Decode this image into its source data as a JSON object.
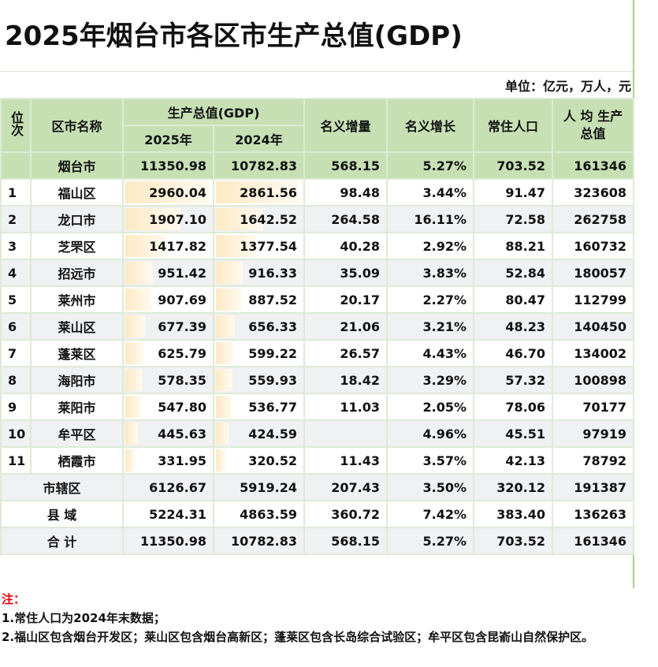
{
  "title": "2025年烟台市各区市生产总值(GDP)",
  "unit": "单位：亿元，万人，元",
  "headers": {
    "rank": "位次",
    "name": "区市名称",
    "gdp": "生产总值(GDP)",
    "y2025": "2025年",
    "y2024": "2024年",
    "inc": "名义增量",
    "growth": "名义增长",
    "pop": "常住人口",
    "per": "人 均 生产总值"
  },
  "total_top": {
    "name": "烟台市",
    "y2025": "11350.98",
    "y2024": "10782.83",
    "inc": "568.15",
    "growth": "5.27%",
    "pop": "703.52",
    "per": "161346"
  },
  "rows": [
    {
      "rank": "1",
      "name": "福山区",
      "y2025": "2960.04",
      "y2024": "2861.56",
      "inc": "98.48",
      "growth": "3.44%",
      "pop": "91.47",
      "per": "323608"
    },
    {
      "rank": "2",
      "name": "龙口市",
      "y2025": "1907.10",
      "y2024": "1642.52",
      "inc": "264.58",
      "growth": "16.11%",
      "pop": "72.58",
      "per": "262758"
    },
    {
      "rank": "3",
      "name": "芝罘区",
      "y2025": "1417.82",
      "y2024": "1377.54",
      "inc": "40.28",
      "growth": "2.92%",
      "pop": "88.21",
      "per": "160732"
    },
    {
      "rank": "4",
      "name": "招远市",
      "y2025": "951.42",
      "y2024": "916.33",
      "inc": "35.09",
      "growth": "3.83%",
      "pop": "52.84",
      "per": "180057"
    },
    {
      "rank": "5",
      "name": "莱州市",
      "y2025": "907.69",
      "y2024": "887.52",
      "inc": "20.17",
      "growth": "2.27%",
      "pop": "80.47",
      "per": "112799"
    },
    {
      "rank": "6",
      "name": "莱山区",
      "y2025": "677.39",
      "y2024": "656.33",
      "inc": "21.06",
      "growth": "3.21%",
      "pop": "48.23",
      "per": "140450"
    },
    {
      "rank": "7",
      "name": "蓬莱区",
      "y2025": "625.79",
      "y2024": "599.22",
      "inc": "26.57",
      "growth": "4.43%",
      "pop": "46.70",
      "per": "134002"
    },
    {
      "rank": "8",
      "name": "海阳市",
      "y2025": "578.35",
      "y2024": "559.93",
      "inc": "18.42",
      "growth": "3.29%",
      "pop": "57.32",
      "per": "100898"
    },
    {
      "rank": "9",
      "name": "莱阳市",
      "y2025": "547.80",
      "y2024": "536.77",
      "inc": "11.03",
      "growth": "2.05%",
      "pop": "78.06",
      "per": "70177"
    },
    {
      "rank": "10",
      "name": "牟平区",
      "y2025": "445.63",
      "y2024": "424.59",
      "inc": "",
      "growth": "4.96%",
      "pop": "45.51",
      "per": "97919"
    },
    {
      "rank": "11",
      "name": "栖霞市",
      "y2025": "331.95",
      "y2024": "320.52",
      "inc": "11.43",
      "growth": "3.57%",
      "pop": "42.13",
      "per": "78792"
    }
  ],
  "summary": [
    {
      "name": "市辖区",
      "y2025": "6126.67",
      "y2024": "5919.24",
      "inc": "207.43",
      "growth": "3.50%",
      "pop": "320.12",
      "per": "191387"
    },
    {
      "name": "县 域",
      "y2025": "5224.31",
      "y2024": "4863.59",
      "inc": "360.72",
      "growth": "7.42%",
      "pop": "383.40",
      "per": "136263"
    },
    {
      "name": "合 计",
      "y2025": "11350.98",
      "y2024": "10782.83",
      "inc": "568.15",
      "growth": "5.27%",
      "pop": "703.52",
      "per": "161346"
    }
  ],
  "notes": {
    "head": "注：",
    "n1": "1.常住人口为2024年末数据；",
    "n2": "2.福山区包含烟台开发区；莱山区包含烟台高新区；蓬莱区包含长岛综合试验区；牟平区包含昆嵛山自然保护区。"
  },
  "colors": {
    "header": "#c6e0b4",
    "bar": "#fde9c4",
    "note": "#e00000"
  }
}
